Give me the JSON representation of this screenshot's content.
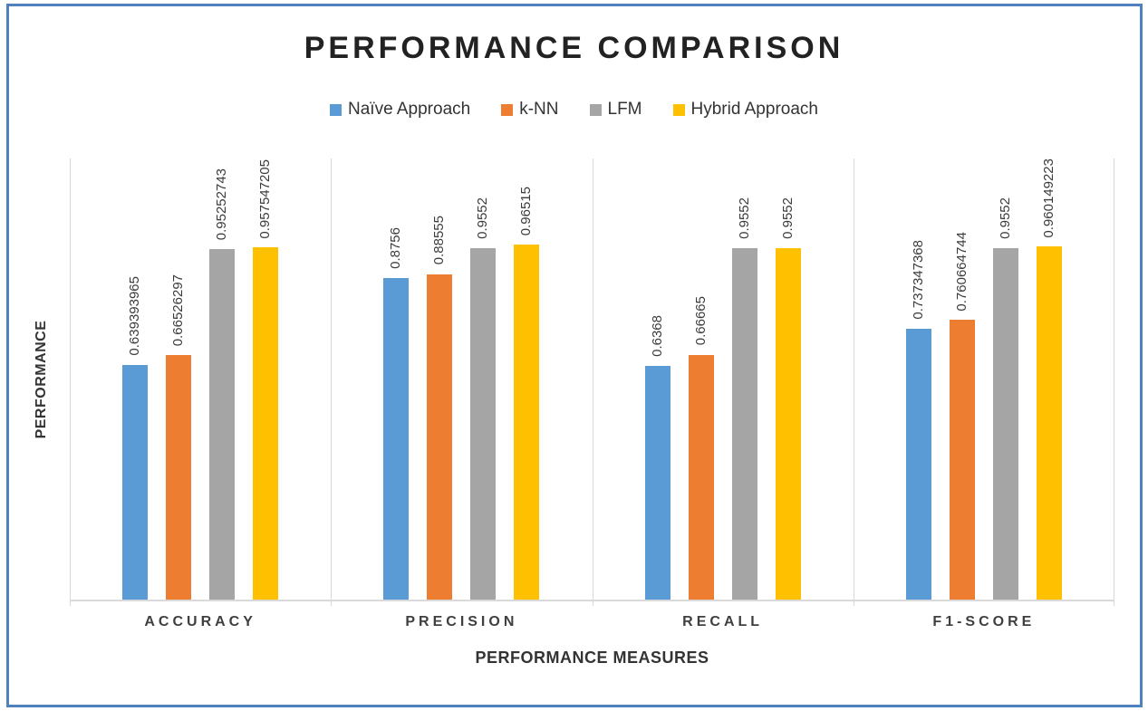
{
  "page": {
    "border_color": "#4E81BD",
    "background_color": "#FFFFFF",
    "axis_line_color": "#D9D9D9"
  },
  "chart_data": {
    "type": "bar",
    "title": "PERFORMANCE COMPARISON",
    "xlabel": "PERFORMANCE MEASURES",
    "ylabel": "PERFORMANCE",
    "categories": [
      "ACCURACY",
      "PRECISION",
      "RECALL",
      "F1-SCORE"
    ],
    "series": [
      {
        "name": "Naïve Approach",
        "color": "#5B9BD5",
        "values": [
          0.639393965,
          0.8756,
          0.6368,
          0.737347368
        ],
        "labels": [
          "0.639393965",
          "0.8756",
          "0.6368",
          "0.737347368"
        ]
      },
      {
        "name": "k-NN",
        "color": "#ED7D31",
        "values": [
          0.66526297,
          0.88555,
          0.66665,
          0.760664744
        ],
        "labels": [
          "0.66526297",
          "0.88555",
          "0.66665",
          "0.760664744"
        ]
      },
      {
        "name": "LFM",
        "color": "#A5A5A5",
        "values": [
          0.95252743,
          0.9552,
          0.9552,
          0.9552
        ],
        "labels": [
          "0.95252743",
          "0.9552",
          "0.9552",
          "0.9552"
        ]
      },
      {
        "name": "Hybrid Approach",
        "color": "#FFC000",
        "values": [
          0.957547205,
          0.96515,
          0.9552,
          0.960149223
        ],
        "labels": [
          "0.957547205",
          "0.96515",
          "0.9552",
          "0.960149223"
        ]
      }
    ],
    "ylim": [
      0,
      1.2
    ],
    "grid": false,
    "y_tick_labels": false,
    "legend_position": "top",
    "data_label_rotation": -90
  }
}
